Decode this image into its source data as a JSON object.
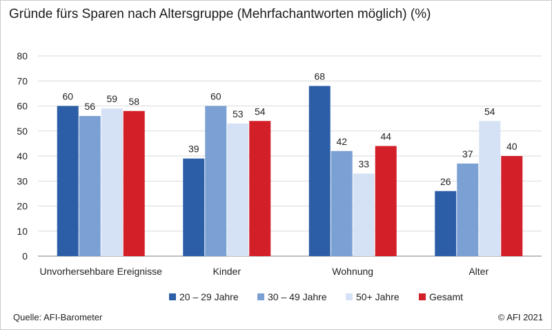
{
  "title": "Gründe fürs Sparen nach Altersgruppe (Mehrfachantworten möglich) (%)",
  "source": "Quelle: AFI-Barometer",
  "copyright": "© AFI 2021",
  "colors": {
    "series1": "#2c5ea8",
    "series2": "#7aa0d4",
    "series3": "#d5e2f5",
    "series4": "#d31f28",
    "grid": "#d9d9d9",
    "axis": "#7f7f7f",
    "text": "#222222"
  },
  "chart_data": {
    "type": "bar",
    "title": "Gründe fürs Sparen nach Altersgruppe (Mehrfachantworten möglich) (%)",
    "xlabel": "",
    "ylabel": "",
    "ylim": [
      0,
      80
    ],
    "yticks": [
      0,
      10,
      20,
      30,
      40,
      50,
      60,
      70,
      80
    ],
    "grid": true,
    "legend": "bottom",
    "categories": [
      "Unvorhersehbare Ereignisse",
      "Kinder",
      "Wohnung",
      "Alter"
    ],
    "series": [
      {
        "name": "20 – 29 Jahre",
        "values": [
          60,
          39,
          68,
          26
        ]
      },
      {
        "name": "30 – 49 Jahre",
        "values": [
          56,
          60,
          42,
          37
        ]
      },
      {
        "name": "50+ Jahre",
        "values": [
          59,
          53,
          33,
          54
        ]
      },
      {
        "name": "Gesamt",
        "values": [
          58,
          54,
          44,
          40
        ]
      }
    ]
  }
}
